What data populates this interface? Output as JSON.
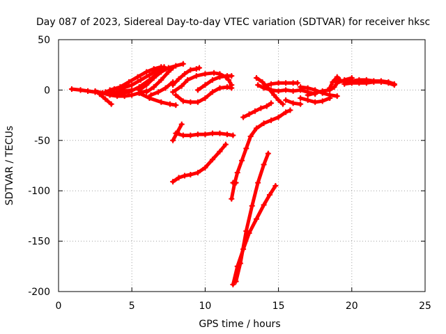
{
  "chart_data": {
    "type": "scatter",
    "title": "Day 087 of 2023, Sidereal Day-to-day VTEC variation (SDTVAR) for receiver hksc",
    "xlabel": "GPS time / hours",
    "ylabel": "SDTVAR / TECUs",
    "xlim": [
      0,
      25
    ],
    "ylim": [
      -200,
      50
    ],
    "xticks": [
      "0",
      "5",
      "10",
      "15",
      "20",
      "25"
    ],
    "yticks": [
      "50",
      "0",
      "-50",
      "-100",
      "-150",
      "-200"
    ],
    "grid": true,
    "color": "#ff0000",
    "marker": "plus",
    "series": [
      {
        "x": [
          0.9,
          1.5,
          2.0,
          2.5,
          3.0,
          3.5,
          4.0,
          4.5
        ],
        "y": [
          1,
          0,
          -1,
          -2,
          -3,
          -4,
          -5,
          -5
        ]
      },
      {
        "x": [
          1.5,
          2.0,
          2.5,
          3.0,
          3.5,
          4.0,
          4.5,
          5.0
        ],
        "y": [
          0,
          -1,
          -2,
          -3,
          -3,
          -2,
          -1,
          0
        ]
      },
      {
        "x": [
          2.5,
          3.0,
          3.5,
          4.0,
          4.5,
          5.0,
          5.5,
          6.0
        ],
        "y": [
          -1,
          -3,
          -5,
          -6,
          -6,
          -5,
          -3,
          -1
        ]
      },
      {
        "x": [
          2.8,
          3.2,
          3.6
        ],
        "y": [
          -4,
          -9,
          -14
        ]
      },
      {
        "x": [
          3.2,
          3.8,
          4.4,
          5.0,
          5.6,
          6.2,
          6.8,
          7.2
        ],
        "y": [
          -2,
          1,
          2,
          5,
          10,
          15,
          20,
          23
        ]
      },
      {
        "x": [
          3.5,
          4.2,
          4.8,
          5.4,
          6.0,
          6.5,
          7.0
        ],
        "y": [
          0,
          3,
          8,
          13,
          18,
          21,
          23
        ]
      },
      {
        "x": [
          4.0,
          4.8,
          5.5,
          6.2,
          6.8,
          7.2
        ],
        "y": [
          -3,
          -2,
          3,
          10,
          17,
          21
        ]
      },
      {
        "x": [
          5.5,
          6.2,
          7.0,
          7.6,
          8.0
        ],
        "y": [
          -3,
          -8,
          -12,
          -14,
          -15
        ]
      },
      {
        "x": [
          5.5,
          6.0,
          6.5,
          7.0,
          7.5,
          8.0,
          8.5
        ],
        "y": [
          0,
          5,
          12,
          18,
          22,
          24,
          26
        ]
      },
      {
        "x": [
          6.0,
          6.5,
          7.0,
          7.5,
          7.8
        ],
        "y": [
          -2,
          3,
          10,
          18,
          22
        ]
      },
      {
        "x": [
          6.3,
          6.8,
          7.3,
          7.8
        ],
        "y": [
          -5,
          -2,
          2,
          8
        ]
      },
      {
        "x": [
          7.8,
          8.2,
          8.6,
          9.0,
          9.4,
          9.6
        ],
        "y": [
          5,
          11,
          16,
          20,
          21,
          22
        ]
      },
      {
        "x": [
          7.8,
          8.4,
          8.8,
          9.4,
          10.0,
          10.6,
          11.0,
          11.4,
          11.6,
          11.8
        ],
        "y": [
          -2,
          4,
          10,
          14,
          16,
          17,
          16,
          13,
          10,
          5
        ]
      },
      {
        "x": [
          8.0,
          8.5,
          9.0,
          9.5,
          10.0,
          10.5,
          11.0,
          11.5,
          11.8
        ],
        "y": [
          -5,
          -11,
          -12,
          -12,
          -8,
          -2,
          2,
          3,
          2
        ]
      },
      {
        "x": [
          9.5,
          10.0,
          10.5,
          11.0,
          11.5,
          11.8
        ],
        "y": [
          0,
          5,
          10,
          13,
          14,
          14
        ]
      },
      {
        "x": [
          7.8,
          8.1,
          8.4
        ],
        "y": [
          -50,
          -42,
          -34
        ]
      },
      {
        "x": [
          8.0,
          8.5,
          9.0,
          9.5,
          10.0,
          10.5,
          11.0,
          11.5,
          11.9
        ],
        "y": [
          -43,
          -45,
          -45,
          -44,
          -44,
          -43,
          -43,
          -44,
          -45
        ]
      },
      {
        "x": [
          7.8,
          8.2,
          8.6,
          9.0,
          9.5,
          10.0,
          10.5,
          11.0,
          11.4
        ],
        "y": [
          -91,
          -87,
          -85,
          -84,
          -82,
          -77,
          -69,
          -61,
          -54
        ]
      },
      {
        "x": [
          11.8,
          12.0,
          12.2,
          12.5,
          12.8,
          13.1,
          13.5,
          14.0,
          14.5,
          15.0,
          15.5,
          15.8
        ],
        "y": [
          -108,
          -93,
          -82,
          -70,
          -58,
          -46,
          -38,
          -33,
          -30,
          -27,
          -22,
          -20
        ]
      },
      {
        "x": [
          12.1,
          12.4,
          12.8,
          13.2,
          13.6,
          14.0,
          14.3
        ],
        "y": [
          -190,
          -172,
          -140,
          -115,
          -92,
          -74,
          -63
        ]
      },
      {
        "x": [
          11.9,
          12.2,
          12.6,
          13.0,
          13.5,
          14.0,
          14.4,
          14.8
        ],
        "y": [
          -193,
          -175,
          -158,
          -142,
          -128,
          -114,
          -104,
          -95
        ]
      },
      {
        "x": [
          11.9,
          12.1
        ],
        "y": [
          -92,
          -92
        ]
      },
      {
        "x": [
          12.6,
          13.0,
          13.4,
          13.8,
          14.2,
          14.5
        ],
        "y": [
          -27,
          -24,
          -21,
          -18,
          -16,
          -13
        ]
      },
      {
        "x": [
          13.5,
          13.9,
          14.3,
          14.7,
          15.0,
          15.3
        ],
        "y": [
          12,
          8,
          2,
          -5,
          -10,
          -14
        ]
      },
      {
        "x": [
          13.6,
          14.0,
          14.5,
          15.0,
          15.5,
          16.0,
          16.5,
          17.0,
          17.5
        ],
        "y": [
          5,
          2,
          0,
          -1,
          0,
          -1,
          0,
          -2,
          -4
        ]
      },
      {
        "x": [
          14.0,
          14.5,
          15.0,
          15.5,
          16.0,
          16.3
        ],
        "y": [
          4,
          6,
          7,
          7,
          7,
          7
        ]
      },
      {
        "x": [
          15.5,
          16.0,
          16.5
        ],
        "y": [
          -10,
          -13,
          -14
        ]
      },
      {
        "x": [
          16.5,
          17.0,
          17.5,
          18.0,
          18.5
        ],
        "y": [
          -8,
          -10,
          -12,
          -11,
          -8
        ]
      },
      {
        "x": [
          16.5,
          17.0,
          17.5,
          18.0,
          18.5,
          19.0
        ],
        "y": [
          3,
          2,
          0,
          -3,
          -5,
          -6
        ]
      },
      {
        "x": [
          17.0,
          17.5,
          18.0,
          18.5,
          18.8,
          19.0,
          19.5,
          20.0
        ],
        "y": [
          -5,
          -3,
          -1,
          0,
          3,
          7,
          10,
          12
        ]
      },
      {
        "x": [
          18.5,
          18.7,
          19.0,
          19.2
        ],
        "y": [
          2,
          8,
          13,
          10
        ]
      },
      {
        "x": [
          19.0,
          19.5,
          20.0,
          20.5,
          21.0,
          21.5,
          22.0,
          22.5,
          22.9
        ],
        "y": [
          8,
          9,
          9,
          10,
          10,
          9,
          9,
          8,
          6
        ]
      },
      {
        "x": [
          19.5,
          20.0,
          20.5,
          21.0,
          21.5,
          22.0,
          22.5,
          22.9
        ],
        "y": [
          6,
          7,
          7,
          7,
          8,
          8,
          7,
          5
        ]
      }
    ]
  }
}
